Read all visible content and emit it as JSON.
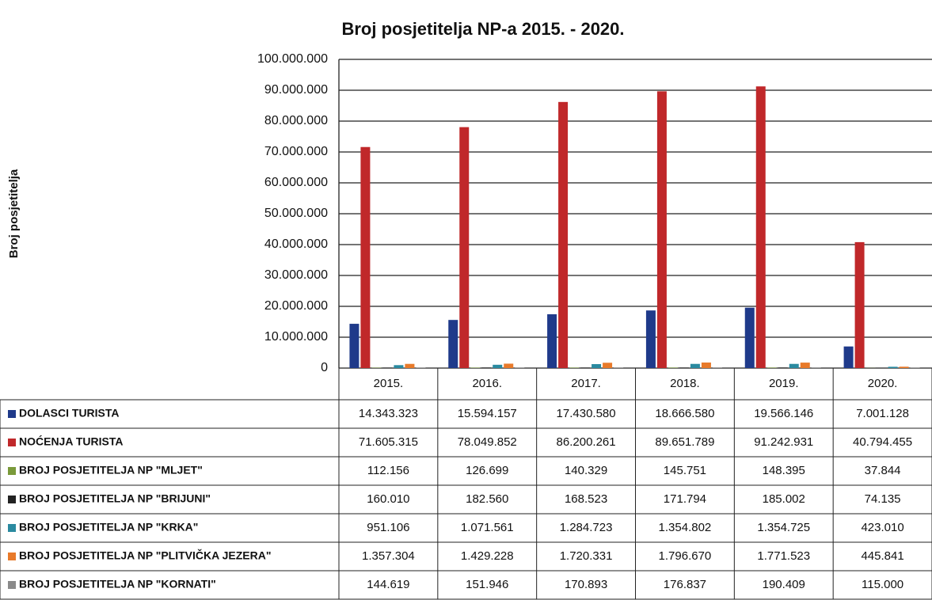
{
  "chart_data": {
    "type": "bar",
    "title": "Broj posjetitelja NP-a 2015. - 2020.",
    "y_label": "Broj posjetitelja",
    "categories": [
      "2015.",
      "2016.",
      "2017.",
      "2018.",
      "2019.",
      "2020."
    ],
    "ylim": [
      0,
      100000000
    ],
    "yticks": [
      0,
      {
        "value": 10000000,
        "label": "10.000.000"
      },
      {
        "value": 20000000,
        "label": "20.000.000"
      },
      {
        "value": 30000000,
        "label": "30.000.000"
      },
      {
        "value": 40000000,
        "label": "40.000.000"
      },
      {
        "value": 50000000,
        "label": "50.000.000"
      },
      {
        "value": 60000000,
        "label": "60.000.000"
      },
      {
        "value": 70000000,
        "label": "70.000.000"
      },
      {
        "value": 80000000,
        "label": "80.000.000"
      },
      {
        "value": 90000000,
        "label": "90.000.000"
      },
      {
        "value": 100000000,
        "label": "100.000.000"
      }
    ],
    "grid": true,
    "series": [
      {
        "name": "DOLASCI TURISTA",
        "color": "#1f3a8a",
        "values": [
          14343323,
          15594157,
          17430580,
          18666580,
          19566146,
          7001128
        ],
        "value_labels": [
          "14.343.323",
          "15.594.157",
          "17.430.580",
          "18.666.580",
          "19.566.146",
          "7.001.128"
        ]
      },
      {
        "name": "NOĆENJA TURISTA",
        "color": "#c0282a",
        "values": [
          71605315,
          78049852,
          86200261,
          89651789,
          91242931,
          40794455
        ],
        "value_labels": [
          "71.605.315",
          "78.049.852",
          "86.200.261",
          "89.651.789",
          "91.242.931",
          "40.794.455"
        ]
      },
      {
        "name": "BROJ POSJETITELJA NP \"MLJET\"",
        "color": "#7a9a3a",
        "values": [
          112156,
          126699,
          140329,
          145751,
          148395,
          37844
        ],
        "value_labels": [
          "112.156",
          "126.699",
          "140.329",
          "145.751",
          "148.395",
          "37.844"
        ]
      },
      {
        "name": "BROJ POSJETITELJA NP \"BRIJUNI\"",
        "color": "#222222",
        "values": [
          160010,
          182560,
          168523,
          171794,
          185002,
          74135
        ],
        "value_labels": [
          "160.010",
          "182.560",
          "168.523",
          "171.794",
          "185.002",
          "74.135"
        ]
      },
      {
        "name": "BROJ POSJETITELJA NP \"KRKA\"",
        "color": "#2a8aa0",
        "values": [
          951106,
          1071561,
          1284723,
          1354802,
          1354725,
          423010
        ],
        "value_labels": [
          "951.106",
          "1.071.561",
          "1.284.723",
          "1.354.802",
          "1.354.725",
          "423.010"
        ]
      },
      {
        "name": "BROJ POSJETITELJA NP \"PLITVIČKA JEZERA\"",
        "color": "#e87a2a",
        "values": [
          1357304,
          1429228,
          1720331,
          1796670,
          1771523,
          445841
        ],
        "value_labels": [
          "1.357.304",
          "1.429.228",
          "1.720.331",
          "1.796.670",
          "1.771.523",
          "445.841"
        ]
      },
      {
        "name": "BROJ POSJETITELJA NP \"KORNATI\"",
        "color": "#8a8a8a",
        "values": [
          144619,
          151946,
          170893,
          176837,
          190409,
          115000
        ],
        "value_labels": [
          "144.619",
          "151.946",
          "170.893",
          "176.837",
          "190.409",
          "115.000"
        ]
      }
    ]
  }
}
